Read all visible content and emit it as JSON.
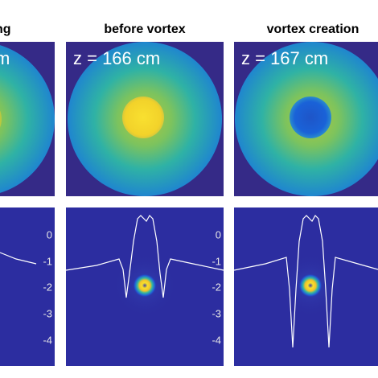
{
  "panels": [
    {
      "title": "ng",
      "z_label": "m"
    },
    {
      "title": "before vortex",
      "z_label": "z = 166 cm"
    },
    {
      "title": "vortex creation",
      "z_label": "z = 167 cm"
    }
  ],
  "axes": [
    {
      "ticks": [
        "0",
        "-1",
        "-2",
        "-3",
        "-4"
      ]
    },
    {
      "ticks": [
        "0",
        "-1",
        "-2",
        "-3",
        "-4"
      ]
    }
  ]
}
